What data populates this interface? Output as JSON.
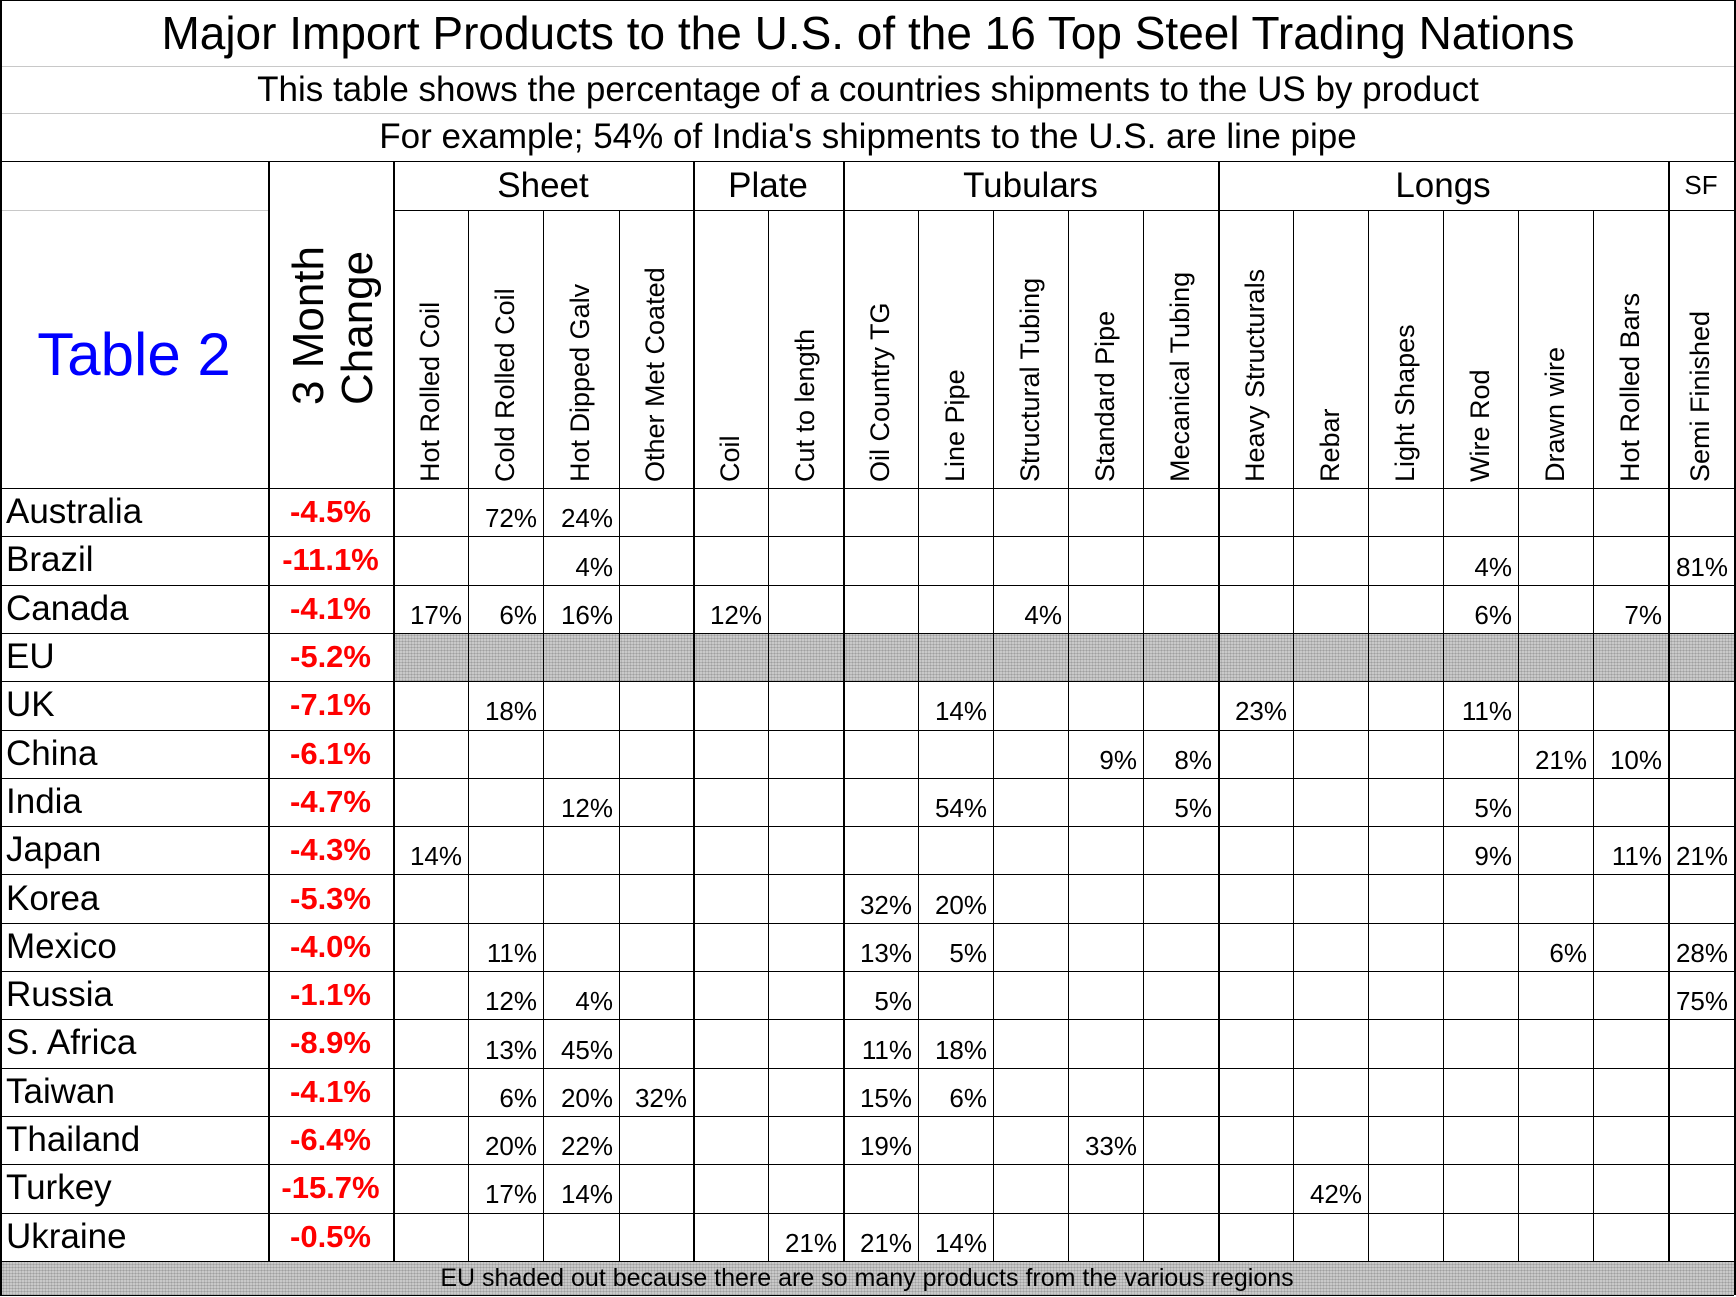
{
  "chart_data": {
    "type": "table",
    "title": "Major Import Products to the U.S. of the 16 Top Steel Trading Nations",
    "subtitle": "This table shows the percentage of a countries shipments to the US by product",
    "example": "For example; 54% of India's shipments to the U.S. are line pipe",
    "table_label": "Table 2",
    "change_header": [
      "3 Month",
      "Change"
    ],
    "groups": [
      "Sheet",
      "Plate",
      "Tubulars",
      "Longs",
      "SF"
    ],
    "products": [
      "Hot Rolled Coil",
      "Cold Rolled Coil",
      "Hot Dipped Galv",
      "Other Met Coated",
      "Coil",
      "Cut to length",
      "Oil Country TG",
      "Line Pipe",
      "Structural Tubing",
      "Standard Pipe",
      "Mecanical Tubing",
      "Heavy Structurals",
      "Rebar",
      "Light Shapes",
      "Wire Rod",
      "Drawn wire",
      "Hot Rolled Bars",
      "Semi Finished"
    ],
    "rows": [
      {
        "country": "Australia",
        "change": "-4.5%",
        "shaded": false,
        "cells": [
          "",
          "72%",
          "24%",
          "",
          "",
          "",
          "",
          "",
          "",
          "",
          "",
          "",
          "",
          "",
          "",
          "",
          "",
          ""
        ]
      },
      {
        "country": "Brazil",
        "change": "-11.1%",
        "shaded": false,
        "cells": [
          "",
          "",
          "4%",
          "",
          "",
          "",
          "",
          "",
          "",
          "",
          "",
          "",
          "",
          "",
          "4%",
          "",
          "",
          "81%"
        ]
      },
      {
        "country": "Canada",
        "change": "-4.1%",
        "shaded": false,
        "cells": [
          "17%",
          "6%",
          "16%",
          "",
          "12%",
          "",
          "",
          "",
          "4%",
          "",
          "",
          "",
          "",
          "",
          "6%",
          "",
          "7%",
          ""
        ]
      },
      {
        "country": "EU",
        "change": "-5.2%",
        "shaded": true,
        "cells": [
          "",
          "",
          "",
          "",
          "",
          "",
          "",
          "",
          "",
          "",
          "",
          "",
          "",
          "",
          "",
          "",
          "",
          ""
        ]
      },
      {
        "country": "UK",
        "change": "-7.1%",
        "shaded": false,
        "cells": [
          "",
          "18%",
          "",
          "",
          "",
          "",
          "",
          "14%",
          "",
          "",
          "",
          "23%",
          "",
          "",
          "11%",
          "",
          "",
          ""
        ]
      },
      {
        "country": "China",
        "change": "-6.1%",
        "shaded": false,
        "cells": [
          "",
          "",
          "",
          "",
          "",
          "",
          "",
          "",
          "",
          "9%",
          "8%",
          "",
          "",
          "",
          "",
          "21%",
          "10%",
          ""
        ]
      },
      {
        "country": "India",
        "change": "-4.7%",
        "shaded": false,
        "cells": [
          "",
          "",
          "12%",
          "",
          "",
          "",
          "",
          "54%",
          "",
          "",
          "5%",
          "",
          "",
          "",
          "5%",
          "",
          "",
          ""
        ]
      },
      {
        "country": "Japan",
        "change": "-4.3%",
        "shaded": false,
        "cells": [
          "14%",
          "",
          "",
          "",
          "",
          "",
          "",
          "",
          "",
          "",
          "",
          "",
          "",
          "",
          "9%",
          "",
          "11%",
          "21%"
        ]
      },
      {
        "country": "Korea",
        "change": "-5.3%",
        "shaded": false,
        "cells": [
          "",
          "",
          "",
          "",
          "",
          "",
          "32%",
          "20%",
          "",
          "",
          "",
          "",
          "",
          "",
          "",
          "",
          "",
          ""
        ]
      },
      {
        "country": "Mexico",
        "change": "-4.0%",
        "shaded": false,
        "cells": [
          "",
          "11%",
          "",
          "",
          "",
          "",
          "13%",
          "5%",
          "",
          "",
          "",
          "",
          "",
          "",
          "",
          "6%",
          "",
          "28%"
        ]
      },
      {
        "country": "Russia",
        "change": "-1.1%",
        "shaded": false,
        "cells": [
          "",
          "12%",
          "4%",
          "",
          "",
          "",
          "5%",
          "",
          "",
          "",
          "",
          "",
          "",
          "",
          "",
          "",
          "",
          "75%"
        ]
      },
      {
        "country": "S. Africa",
        "change": "-8.9%",
        "shaded": false,
        "cells": [
          "",
          "13%",
          "45%",
          "",
          "",
          "",
          "11%",
          "18%",
          "",
          "",
          "",
          "",
          "",
          "",
          "",
          "",
          "",
          ""
        ]
      },
      {
        "country": "Taiwan",
        "change": "-4.1%",
        "shaded": false,
        "cells": [
          "",
          "6%",
          "20%",
          "32%",
          "",
          "",
          "15%",
          "6%",
          "",
          "",
          "",
          "",
          "",
          "",
          "",
          "",
          "",
          ""
        ]
      },
      {
        "country": "Thailand",
        "change": "-6.4%",
        "shaded": false,
        "cells": [
          "",
          "20%",
          "22%",
          "",
          "",
          "",
          "19%",
          "",
          "",
          "33%",
          "",
          "",
          "",
          "",
          "",
          "",
          "",
          ""
        ]
      },
      {
        "country": "Turkey",
        "change": "-15.7%",
        "shaded": false,
        "cells": [
          "",
          "17%",
          "14%",
          "",
          "",
          "",
          "",
          "",
          "",
          "",
          "",
          "",
          "42%",
          "",
          "",
          "",
          "",
          ""
        ]
      },
      {
        "country": "Ukraine",
        "change": "-0.5%",
        "shaded": false,
        "cells": [
          "",
          "",
          "",
          "",
          "",
          "21%",
          "21%",
          "14%",
          "",
          "",
          "",
          "",
          "",
          "",
          "",
          "",
          "",
          ""
        ]
      }
    ],
    "footnote": "EU shaded out because there are so many products from the various regions"
  },
  "colors": {
    "table_label": "#0000ff",
    "change_text": "#ff0000",
    "shade": "#c9c9c9",
    "grid": "#000000"
  }
}
